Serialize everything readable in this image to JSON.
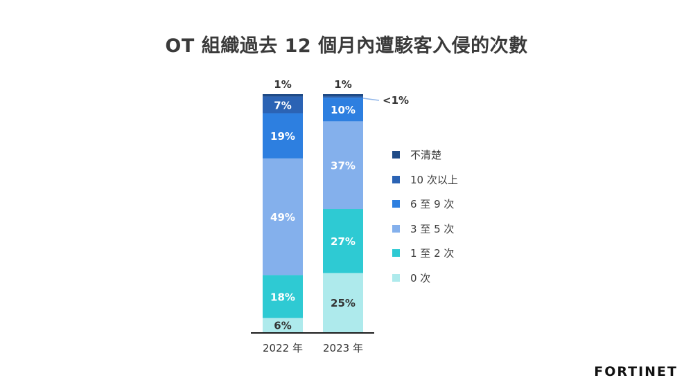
{
  "title": "OT 組織過去 12 個月內遭駭客入侵的次數",
  "brand": "FORTINET",
  "chart_data": {
    "type": "bar",
    "stacked": true,
    "categories": [
      "2022 年",
      "2023 年"
    ],
    "series": [
      {
        "name": "0 次",
        "color": "#aeeaec",
        "values": [
          6,
          25
        ],
        "labels": [
          "6%",
          "25%"
        ],
        "label_color": "#333333"
      },
      {
        "name": "1 至 2 次",
        "color": "#2ecad3",
        "values": [
          18,
          27
        ],
        "labels": [
          "18%",
          "27%"
        ],
        "label_color": "#ffffff"
      },
      {
        "name": "3 至 5 次",
        "color": "#84b0ec",
        "values": [
          49,
          37
        ],
        "labels": [
          "49%",
          "37%"
        ],
        "label_color": "#ffffff"
      },
      {
        "name": "6 至 9 次",
        "color": "#2d7fe0",
        "values": [
          19,
          10
        ],
        "labels": [
          "19%",
          "10%"
        ],
        "label_color": "#ffffff"
      },
      {
        "name": "10 次以上",
        "color": "#2b63b4",
        "values": [
          7,
          0.5
        ],
        "labels": [
          "7%",
          ""
        ],
        "label_color": "#ffffff"
      },
      {
        "name": "不清楚",
        "color": "#1f4b87",
        "values": [
          1,
          1
        ],
        "labels": [
          "",
          ""
        ],
        "label_color": "#ffffff"
      }
    ],
    "top_labels": [
      "1%",
      "1%"
    ],
    "annotation": "<1%",
    "legend_position": "right",
    "grid": false
  }
}
